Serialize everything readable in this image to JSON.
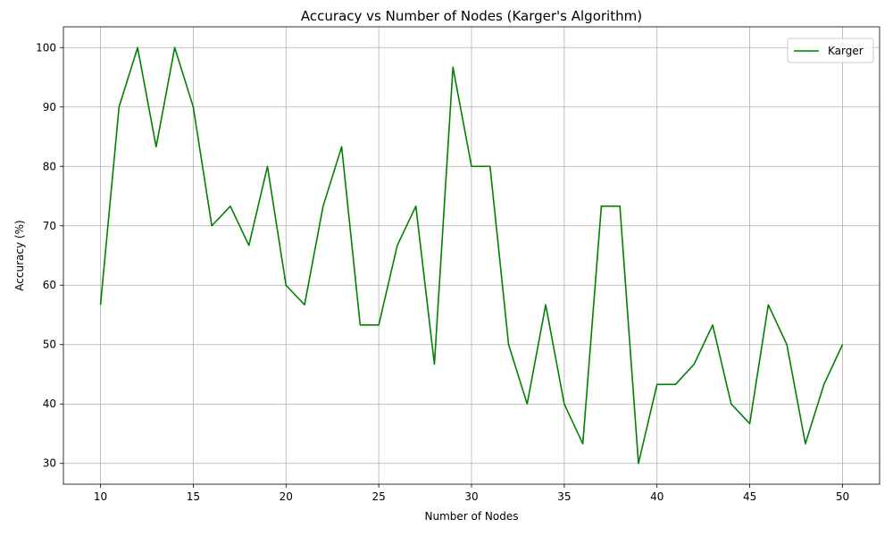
{
  "chart_data": {
    "type": "line",
    "title": "Accuracy vs Number of Nodes (Karger's Algorithm)",
    "xlabel": "Number of Nodes",
    "ylabel": "Accuracy (%)",
    "xlim": [
      8.0,
      52.0
    ],
    "ylim": [
      26.5,
      103.5
    ],
    "xticks": [
      10,
      15,
      20,
      25,
      30,
      35,
      40,
      45,
      50
    ],
    "yticks": [
      30,
      40,
      50,
      60,
      70,
      80,
      90,
      100
    ],
    "grid": true,
    "legend_position": "top-right",
    "series": [
      {
        "name": "Karger",
        "color": "#008000",
        "x": [
          10,
          11,
          12,
          13,
          14,
          15,
          16,
          17,
          18,
          19,
          20,
          21,
          22,
          23,
          24,
          25,
          26,
          27,
          28,
          29,
          30,
          31,
          32,
          33,
          34,
          35,
          36,
          37,
          38,
          39,
          40,
          41,
          42,
          43,
          44,
          45,
          46,
          47,
          48,
          49,
          50
        ],
        "y": [
          56.7,
          90,
          100,
          83.3,
          100,
          90,
          70,
          73.3,
          66.7,
          80,
          60,
          56.7,
          73.3,
          83.3,
          53.3,
          53.3,
          66.7,
          73.3,
          46.7,
          96.7,
          80,
          80,
          50,
          40,
          56.7,
          40,
          33.3,
          73.3,
          73.3,
          30,
          43.3,
          43.3,
          46.7,
          53.3,
          40,
          36.7,
          56.7,
          50,
          33.3,
          43.3,
          50
        ]
      }
    ]
  }
}
